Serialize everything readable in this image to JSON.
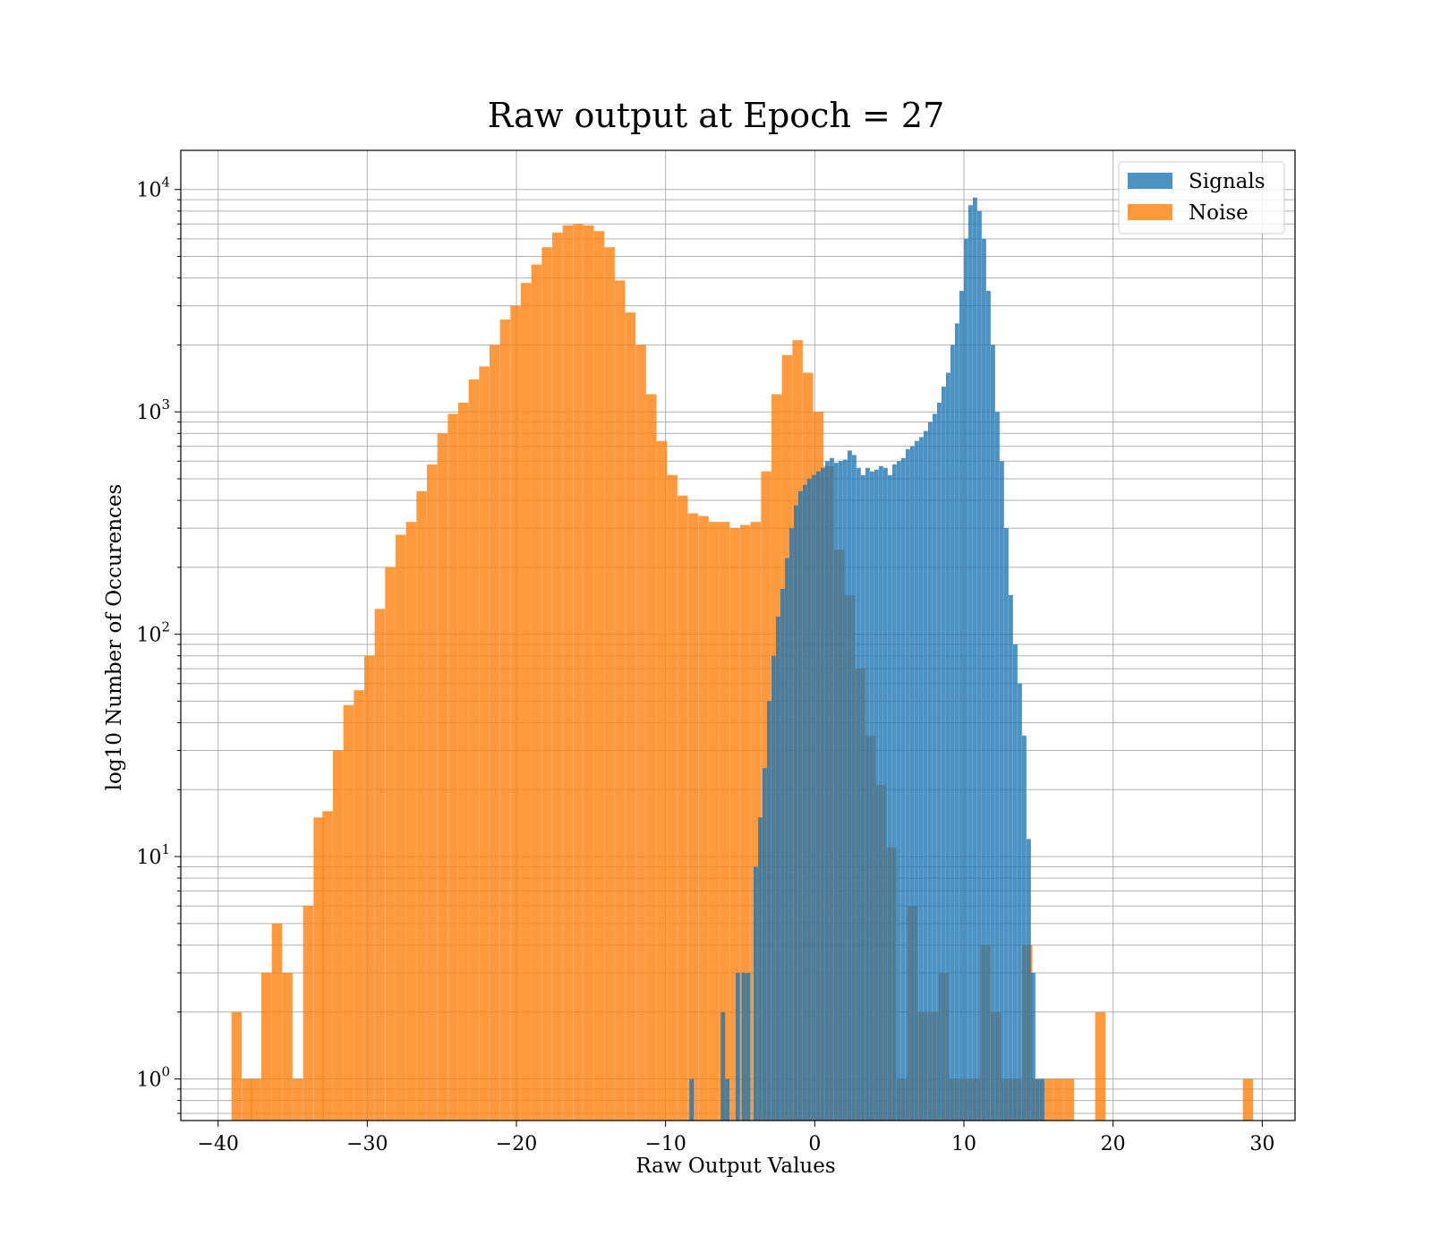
{
  "chart_data": {
    "type": "histogram",
    "title": "Raw output at Epoch = 27",
    "xlabel": "Raw Output Values",
    "ylabel": "log10 Number of Occurences",
    "xlim": [
      -42.5,
      32.2
    ],
    "ylim": [
      0.65,
      15000
    ],
    "yscale": "log",
    "grid": true,
    "legend_position": "top-right",
    "x_ticks": [
      -40,
      -30,
      -20,
      -10,
      0,
      10,
      20,
      30
    ],
    "x_tick_labels": [
      "−40",
      "−30",
      "−20",
      "−10",
      "0",
      "10",
      "20",
      "30"
    ],
    "y_ticks": [
      1,
      10,
      100,
      1000,
      10000
    ],
    "y_tick_labels": [
      {
        "base": "10",
        "exp": "0"
      },
      {
        "base": "10",
        "exp": "1"
      },
      {
        "base": "10",
        "exp": "2"
      },
      {
        "base": "10",
        "exp": "3"
      },
      {
        "base": "10",
        "exp": "4"
      }
    ],
    "series": [
      {
        "name": "Signals",
        "color": "#1f77b4",
        "bin_width": 0.29,
        "bins": [
          [
            -8.4,
            1
          ],
          [
            -6.3,
            2
          ],
          [
            -6.0,
            1
          ],
          [
            -5.3,
            3
          ],
          [
            -4.9,
            3
          ],
          [
            -4.6,
            3
          ],
          [
            -4.1,
            9
          ],
          [
            -3.8,
            15
          ],
          [
            -3.5,
            25
          ],
          [
            -3.2,
            50
          ],
          [
            -2.9,
            80
          ],
          [
            -2.6,
            120
          ],
          [
            -2.3,
            160
          ],
          [
            -2.0,
            220
          ],
          [
            -1.7,
            300
          ],
          [
            -1.4,
            380
          ],
          [
            -1.1,
            440
          ],
          [
            -0.8,
            470
          ],
          [
            -0.5,
            500
          ],
          [
            -0.2,
            520
          ],
          [
            0.1,
            540
          ],
          [
            0.4,
            560
          ],
          [
            0.7,
            600
          ],
          [
            1.0,
            620
          ],
          [
            1.3,
            590
          ],
          [
            1.6,
            600
          ],
          [
            1.9,
            610
          ],
          [
            2.2,
            670
          ],
          [
            2.5,
            640
          ],
          [
            2.8,
            560
          ],
          [
            3.1,
            520
          ],
          [
            3.4,
            560
          ],
          [
            3.7,
            540
          ],
          [
            4.0,
            550
          ],
          [
            4.3,
            570
          ],
          [
            4.6,
            560
          ],
          [
            4.9,
            520
          ],
          [
            5.2,
            580
          ],
          [
            5.5,
            600
          ],
          [
            5.8,
            620
          ],
          [
            6.1,
            680
          ],
          [
            6.4,
            700
          ],
          [
            6.7,
            740
          ],
          [
            7.0,
            770
          ],
          [
            7.3,
            820
          ],
          [
            7.6,
            900
          ],
          [
            7.9,
            980
          ],
          [
            8.2,
            1100
          ],
          [
            8.5,
            1300
          ],
          [
            8.8,
            1500
          ],
          [
            9.1,
            2000
          ],
          [
            9.4,
            2500
          ],
          [
            9.7,
            3500
          ],
          [
            10.0,
            6000
          ],
          [
            10.3,
            8500
          ],
          [
            10.6,
            9200
          ],
          [
            10.9,
            8000
          ],
          [
            11.2,
            6000
          ],
          [
            11.5,
            3500
          ],
          [
            11.8,
            2000
          ],
          [
            12.1,
            1000
          ],
          [
            12.4,
            600
          ],
          [
            12.7,
            300
          ],
          [
            13.0,
            150
          ],
          [
            13.3,
            90
          ],
          [
            13.6,
            60
          ],
          [
            13.9,
            35
          ],
          [
            14.2,
            12
          ],
          [
            14.5,
            3
          ],
          [
            14.8,
            1
          ],
          [
            15.1,
            1
          ]
        ]
      },
      {
        "name": "Noise",
        "color": "#ff7f0e",
        "bin_width": 0.69,
        "bins": [
          [
            -39.1,
            2
          ],
          [
            -38.4,
            1
          ],
          [
            -37.8,
            1
          ],
          [
            -37.1,
            3
          ],
          [
            -36.4,
            5
          ],
          [
            -35.7,
            3
          ],
          [
            -35.0,
            1
          ],
          [
            -34.3,
            6
          ],
          [
            -33.6,
            15
          ],
          [
            -33.0,
            16
          ],
          [
            -32.3,
            30
          ],
          [
            -31.6,
            48
          ],
          [
            -30.9,
            56
          ],
          [
            -30.2,
            80
          ],
          [
            -29.5,
            130
          ],
          [
            -28.8,
            200
          ],
          [
            -28.1,
            280
          ],
          [
            -27.4,
            320
          ],
          [
            -26.7,
            440
          ],
          [
            -26.0,
            580
          ],
          [
            -25.3,
            800
          ],
          [
            -24.6,
            980
          ],
          [
            -23.9,
            1100
          ],
          [
            -23.2,
            1400
          ],
          [
            -22.5,
            1600
          ],
          [
            -21.8,
            2000
          ],
          [
            -21.1,
            2600
          ],
          [
            -20.4,
            3000
          ],
          [
            -19.7,
            3800
          ],
          [
            -19.0,
            4600
          ],
          [
            -18.3,
            5500
          ],
          [
            -17.6,
            6400
          ],
          [
            -16.9,
            6900
          ],
          [
            -16.2,
            7000
          ],
          [
            -15.5,
            6900
          ],
          [
            -14.8,
            6500
          ],
          [
            -14.1,
            5500
          ],
          [
            -13.4,
            3900
          ],
          [
            -12.7,
            2800
          ],
          [
            -12.0,
            2000
          ],
          [
            -11.3,
            1200
          ],
          [
            -10.6,
            740
          ],
          [
            -9.9,
            520
          ],
          [
            -9.2,
            420
          ],
          [
            -8.5,
            350
          ],
          [
            -7.8,
            340
          ],
          [
            -7.1,
            320
          ],
          [
            -6.4,
            320
          ],
          [
            -5.7,
            300
          ],
          [
            -5.0,
            310
          ],
          [
            -4.3,
            320
          ],
          [
            -3.6,
            540
          ],
          [
            -2.9,
            1200
          ],
          [
            -2.2,
            1800
          ],
          [
            -1.5,
            2100
          ],
          [
            -0.8,
            1500
          ],
          [
            -0.1,
            1000
          ],
          [
            0.6,
            570
          ],
          [
            1.3,
            240
          ],
          [
            2.0,
            150
          ],
          [
            2.7,
            70
          ],
          [
            3.4,
            35
          ],
          [
            4.1,
            21
          ],
          [
            4.8,
            11
          ],
          [
            5.5,
            1
          ],
          [
            6.2,
            6
          ],
          [
            6.9,
            2
          ],
          [
            7.6,
            2
          ],
          [
            8.3,
            3
          ],
          [
            9.0,
            1
          ],
          [
            9.7,
            1
          ],
          [
            10.4,
            1
          ],
          [
            11.1,
            4
          ],
          [
            11.8,
            2
          ],
          [
            12.5,
            1
          ],
          [
            13.2,
            1
          ],
          [
            13.9,
            4
          ],
          [
            14.6,
            1
          ],
          [
            15.3,
            1
          ],
          [
            16.0,
            1
          ],
          [
            16.7,
            1
          ],
          [
            17.4,
            0
          ],
          [
            18.1,
            0
          ],
          [
            18.8,
            2
          ],
          [
            19.5,
            0
          ],
          [
            28.7,
            1
          ]
        ]
      }
    ]
  }
}
